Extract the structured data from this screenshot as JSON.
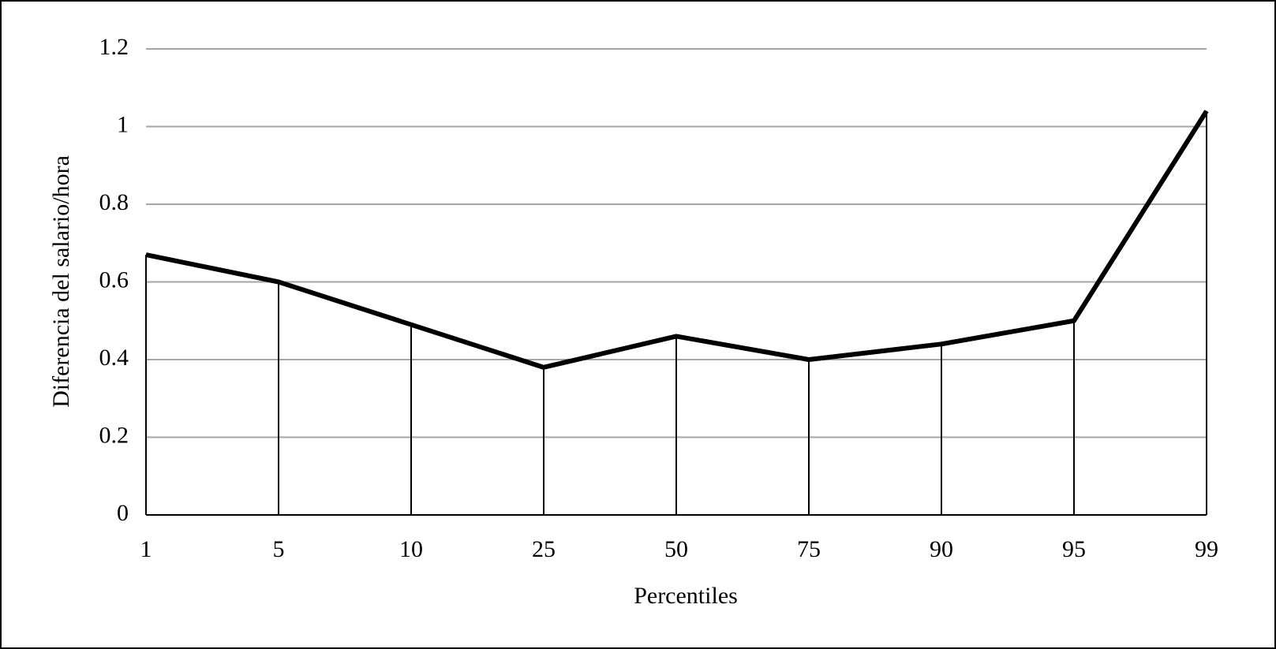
{
  "chart_data": {
    "type": "line",
    "xlabel": "Percentiles",
    "ylabel": "Diferencia del salario/hora",
    "categories": [
      "1",
      "5",
      "10",
      "25",
      "50",
      "75",
      "90",
      "95",
      "99"
    ],
    "values": [
      0.67,
      0.6,
      0.49,
      0.38,
      0.46,
      0.4,
      0.44,
      0.5,
      1.04
    ],
    "color": "#000000",
    "ylim": [
      0,
      1.2
    ],
    "yticks": [
      0,
      0.2,
      0.4,
      0.6,
      0.8,
      1,
      1.2
    ],
    "grid": true,
    "drop_lines": true
  }
}
